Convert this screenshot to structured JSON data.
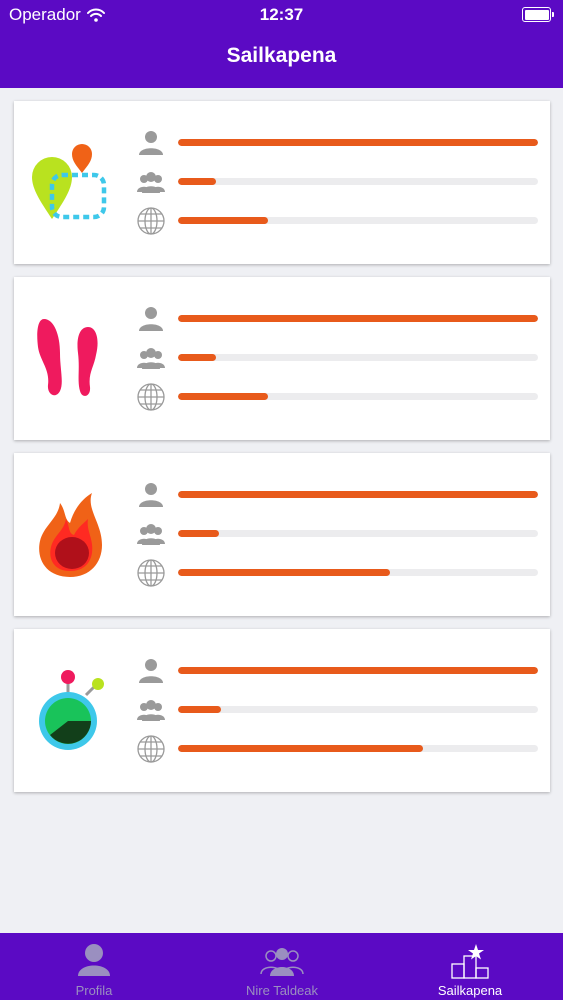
{
  "status_bar": {
    "carrier": "Operador",
    "time": "12:37",
    "icons": [
      "wifi-icon",
      "battery-icon"
    ]
  },
  "header": {
    "title": "Sailkapena"
  },
  "rankings": [
    {
      "activity_icon": "route-map-icon",
      "personal": 1.0,
      "group": 0.105,
      "global": 0.25
    },
    {
      "activity_icon": "footprints-icon",
      "personal": 1.0,
      "group": 0.105,
      "global": 0.25
    },
    {
      "activity_icon": "flame-icon",
      "personal": 1.0,
      "group": 0.115,
      "global": 0.59
    },
    {
      "activity_icon": "stopwatch-icon",
      "personal": 1.0,
      "group": 0.12,
      "global": 0.68
    }
  ],
  "row_icons": {
    "personal": "person-icon",
    "group": "group-icon",
    "global": "globe-icon"
  },
  "colors": {
    "primary": "#5b0ac4",
    "bar_fill": "#e85a1b",
    "bar_track": "#ececee",
    "background": "#eff0f4",
    "tab_inactive": "#9a8fc0"
  },
  "tabs": [
    {
      "label": "Profila",
      "icon": "profile-icon",
      "active": false
    },
    {
      "label": "Nire Taldeak",
      "icon": "groups-icon",
      "active": false
    },
    {
      "label": "Sailkapena",
      "icon": "podium-star-icon",
      "active": true
    }
  ]
}
